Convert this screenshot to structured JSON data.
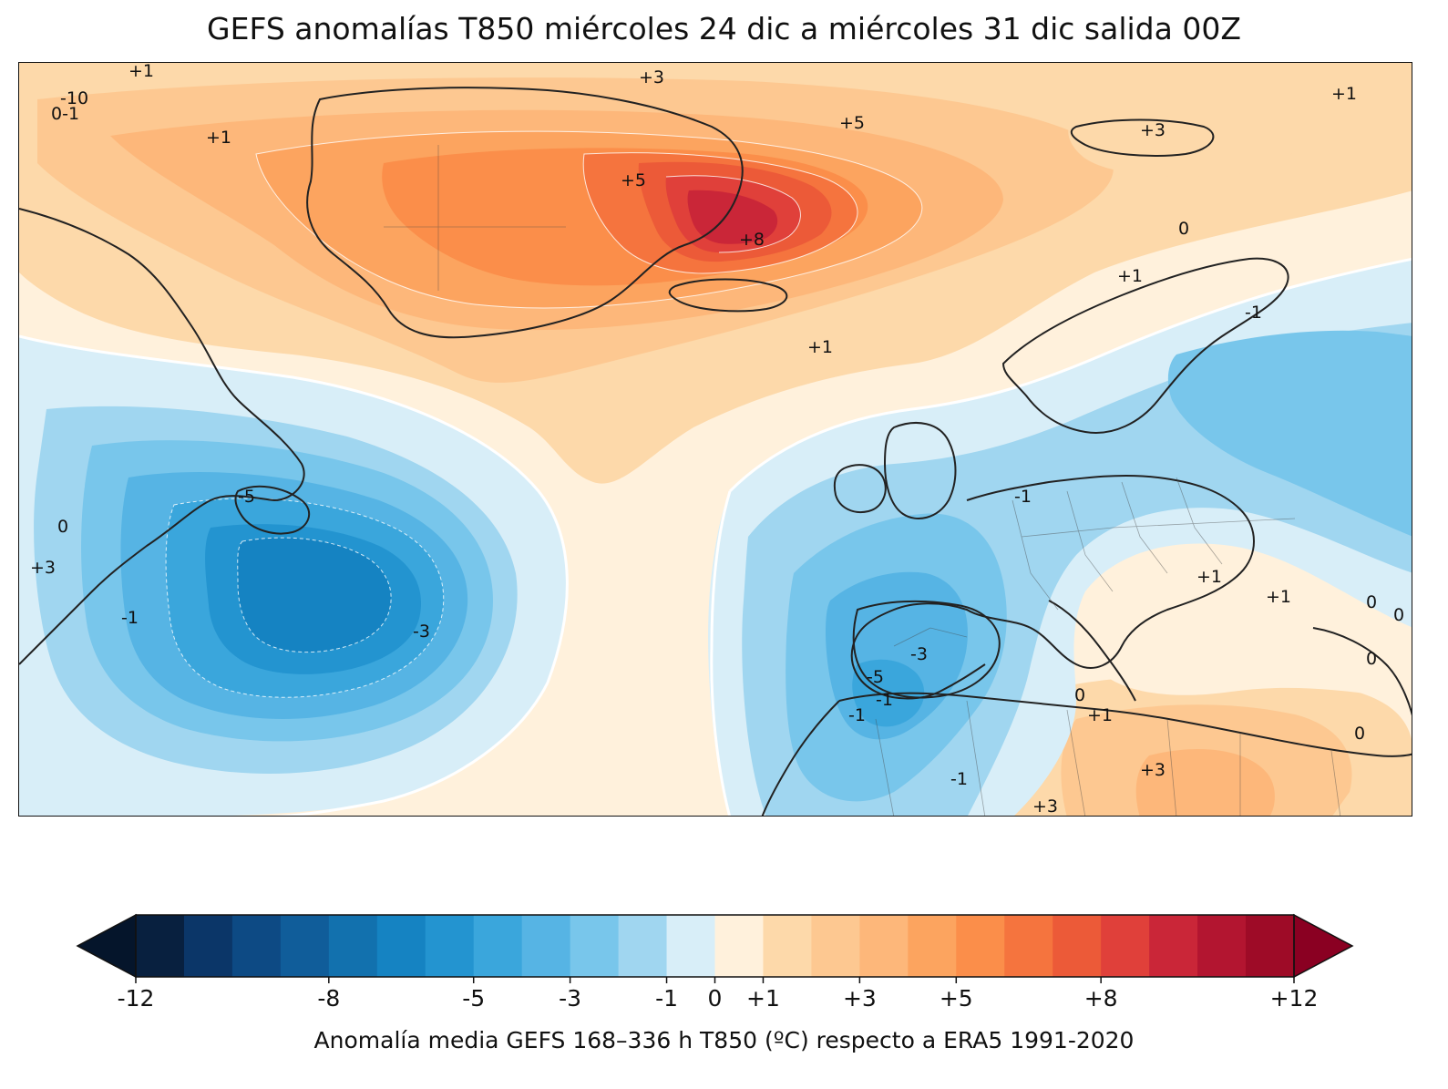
{
  "title": "GEFS anomalías T850 miércoles 24 dic a miércoles 31 dic salida 00Z",
  "colorbar": {
    "label": "Anomalía media GEFS 168–336 h T850 (ºC) respecto a ERA5 1991-2020",
    "min": -12,
    "max": 12,
    "boundaries": [
      -12,
      -11,
      -10,
      -9,
      -8,
      -7,
      -6,
      -5,
      -4,
      -3,
      -2,
      -1,
      0,
      1,
      2,
      3,
      4,
      5,
      6,
      7,
      8,
      9,
      10,
      11,
      12
    ],
    "colors": [
      "#08203f",
      "#0b3668",
      "#0d4a84",
      "#105d9a",
      "#1271ae",
      "#1583c2",
      "#2394d0",
      "#3aa6dc",
      "#56b4e4",
      "#78c6eb",
      "#a0d6f0",
      "#d8eef8",
      "#fff1dc",
      "#fdd9aa",
      "#fdc891",
      "#fdb77a",
      "#fca45f",
      "#fb8e4a",
      "#f5743e",
      "#ec5a38",
      "#e0403a",
      "#ca2638",
      "#b31530",
      "#9e0b27"
    ],
    "under_color": "#05152b",
    "over_color": "#8a0022",
    "tick_labels": [
      {
        "value": -12,
        "text": "-12"
      },
      {
        "value": -8,
        "text": "-8"
      },
      {
        "value": -5,
        "text": "-5"
      },
      {
        "value": -3,
        "text": "-3"
      },
      {
        "value": -1,
        "text": "-1"
      },
      {
        "value": 0,
        "text": "0"
      },
      {
        "value": 1,
        "text": "+1"
      },
      {
        "value": 3,
        "text": "+3"
      },
      {
        "value": 5,
        "text": "+5"
      },
      {
        "value": 8,
        "text": "+8"
      },
      {
        "value": 12,
        "text": "+12"
      }
    ]
  },
  "map": {
    "region": "North Atlantic, Greenland, Europe, North Africa",
    "warm_anomaly_center": "Greenland / Denmark Strait",
    "cold_anomaly_center": "Northwest Atlantic off Newfoundland",
    "contour_labels": [
      {
        "text": "+1",
        "lon_lat_hint": "top-left"
      },
      {
        "text": "-10",
        "lon_lat_hint": "top-left"
      },
      {
        "text": "0-1",
        "lon_lat_hint": "top-left"
      },
      {
        "text": "+3",
        "lon_lat_hint": "top-center"
      },
      {
        "text": "+5",
        "lon_lat_hint": "greenland"
      },
      {
        "text": "+5",
        "lon_lat_hint": "greenland-east"
      },
      {
        "text": "+8",
        "lon_lat_hint": "denmark-strait"
      },
      {
        "text": "+1",
        "lon_lat_hint": "greenland-west"
      },
      {
        "text": "+1",
        "lon_lat_hint": "top-right"
      },
      {
        "text": "+3",
        "lon_lat_hint": "svalbard"
      },
      {
        "text": "0",
        "lon_lat_hint": "norway"
      },
      {
        "text": "+1",
        "lon_lat_hint": "scandinavia"
      },
      {
        "text": "-1",
        "lon_lat_hint": "russia"
      },
      {
        "text": "+1",
        "lon_lat_hint": "mid-atlantic"
      },
      {
        "text": "-5",
        "lon_lat_hint": "newfoundland"
      },
      {
        "text": "-3",
        "lon_lat_hint": "nw-atlantic"
      },
      {
        "text": "0",
        "lon_lat_hint": "us-east"
      },
      {
        "text": "+3",
        "lon_lat_hint": "us-east"
      },
      {
        "text": "-1",
        "lon_lat_hint": "us-east-coast"
      },
      {
        "text": "-1",
        "lon_lat_hint": "france"
      },
      {
        "text": "+1",
        "lon_lat_hint": "balkans"
      },
      {
        "text": "+1",
        "lon_lat_hint": "turkey"
      },
      {
        "text": "0",
        "lon_lat_hint": "turkey"
      },
      {
        "text": "0",
        "lon_lat_hint": "turkey-east"
      },
      {
        "text": "-3",
        "lon_lat_hint": "morocco"
      },
      {
        "text": "-5",
        "lon_lat_hint": "morocco"
      },
      {
        "text": "-1",
        "lon_lat_hint": "morocco"
      },
      {
        "text": "-1",
        "lon_lat_hint": "morocco-south"
      },
      {
        "text": "0",
        "lon_lat_hint": "libya"
      },
      {
        "text": "+1",
        "lon_lat_hint": "libya"
      },
      {
        "text": "+3",
        "lon_lat_hint": "sahara"
      },
      {
        "text": "-1",
        "lon_lat_hint": "sahara-west"
      },
      {
        "text": "+3",
        "lon_lat_hint": "sahara-south"
      },
      {
        "text": "0",
        "lon_lat_hint": "egypt"
      },
      {
        "text": "0",
        "lon_lat_hint": "egypt-south"
      }
    ]
  }
}
